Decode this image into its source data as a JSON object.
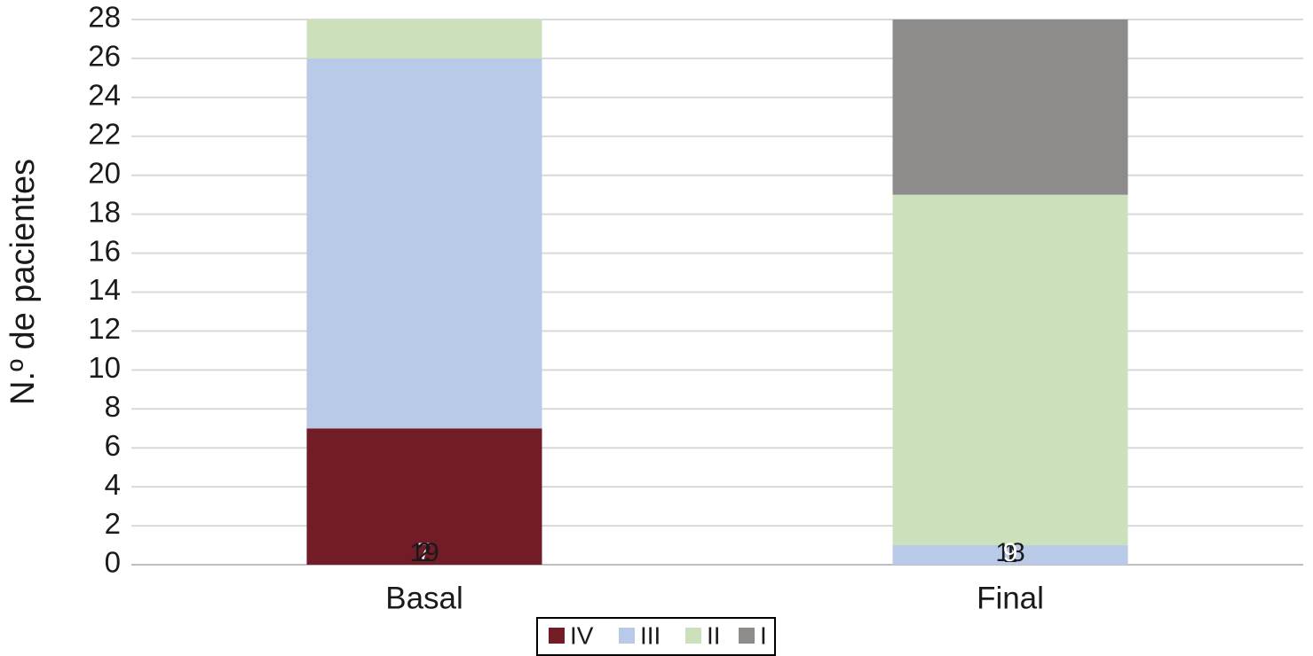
{
  "chart_data": {
    "type": "stacked_bar",
    "y_label": "N.º de pacientes",
    "categories": [
      "Basal",
      "Final"
    ],
    "series": [
      {
        "name": "IV",
        "color": "#721c28",
        "values": [
          7,
          0
        ]
      },
      {
        "name": "III",
        "color": "#b9c9e8",
        "values": [
          19,
          1
        ]
      },
      {
        "name": "II",
        "color": "#cbe0bb",
        "values": [
          2,
          18
        ]
      },
      {
        "name": "I",
        "color": "#8e8c8a",
        "values": [
          0,
          9
        ]
      }
    ],
    "ylim": [
      0,
      28
    ],
    "yticks": [
      0,
      2,
      4,
      6,
      8,
      10,
      12,
      14,
      16,
      18,
      20,
      22,
      24,
      26,
      28
    ],
    "grid": true,
    "legend": "bottom"
  }
}
